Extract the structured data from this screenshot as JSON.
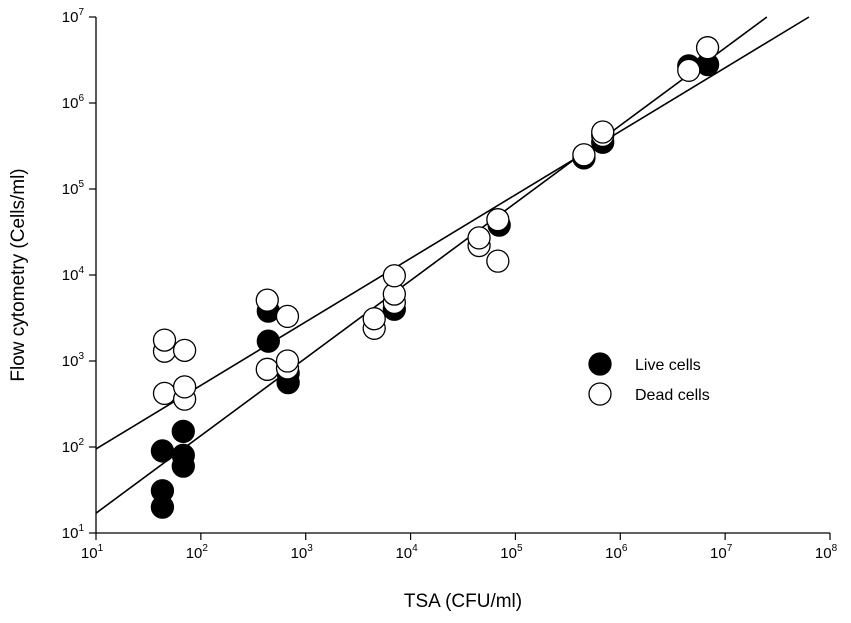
{
  "chart_data": {
    "type": "scatter",
    "title": "",
    "xlabel": "TSA (CFU/ml)",
    "ylabel": "Flow cytometry (Cells/ml)",
    "xscale": "log",
    "yscale": "log",
    "xlim": [
      10,
      100000000
    ],
    "ylim": [
      10,
      10000000
    ],
    "x_ticks": [
      {
        "base": "10",
        "exp": "1",
        "value": 10
      },
      {
        "base": "10",
        "exp": "2",
        "value": 100
      },
      {
        "base": "10",
        "exp": "3",
        "value": 1000
      },
      {
        "base": "10",
        "exp": "4",
        "value": 10000
      },
      {
        "base": "10",
        "exp": "5",
        "value": 100000
      },
      {
        "base": "10",
        "exp": "6",
        "value": 1000000
      },
      {
        "base": "10",
        "exp": "7",
        "value": 10000000
      },
      {
        "base": "10",
        "exp": "8",
        "value": 100000000
      }
    ],
    "y_ticks": [
      {
        "base": "10",
        "exp": "1",
        "value": 10
      },
      {
        "base": "10",
        "exp": "2",
        "value": 100
      },
      {
        "base": "10",
        "exp": "3",
        "value": 1000
      },
      {
        "base": "10",
        "exp": "4",
        "value": 10000
      },
      {
        "base": "10",
        "exp": "5",
        "value": 100000
      },
      {
        "base": "10",
        "exp": "6",
        "value": 1000000
      },
      {
        "base": "10",
        "exp": "7",
        "value": 10000000
      }
    ],
    "legend_position": "center-right",
    "series": [
      {
        "name": "Live cells",
        "marker": "filled-circle",
        "color": "#000000",
        "points": [
          {
            "x": 43,
            "y": 20
          },
          {
            "x": 43,
            "y": 31
          },
          {
            "x": 43,
            "y": 90
          },
          {
            "x": 68,
            "y": 60
          },
          {
            "x": 68,
            "y": 80
          },
          {
            "x": 68,
            "y": 152
          },
          {
            "x": 440,
            "y": 1700
          },
          {
            "x": 440,
            "y": 3800
          },
          {
            "x": 680,
            "y": 560
          },
          {
            "x": 680,
            "y": 720
          },
          {
            "x": 7000,
            "y": 4000
          },
          {
            "x": 70000,
            "y": 38000
          },
          {
            "x": 450000,
            "y": 230000
          },
          {
            "x": 680000,
            "y": 350000
          },
          {
            "x": 4500000,
            "y": 2700000
          },
          {
            "x": 6800000,
            "y": 2800000
          }
        ]
      },
      {
        "name": "Dead cells",
        "marker": "open-circle",
        "color": "#ffffff",
        "points": [
          {
            "x": 45,
            "y": 420
          },
          {
            "x": 45,
            "y": 1300
          },
          {
            "x": 45,
            "y": 1750
          },
          {
            "x": 70,
            "y": 360
          },
          {
            "x": 70,
            "y": 500
          },
          {
            "x": 70,
            "y": 1330
          },
          {
            "x": 430,
            "y": 800
          },
          {
            "x": 430,
            "y": 5100
          },
          {
            "x": 670,
            "y": 830
          },
          {
            "x": 670,
            "y": 1000
          },
          {
            "x": 670,
            "y": 3300
          },
          {
            "x": 4500,
            "y": 2400
          },
          {
            "x": 4500,
            "y": 3100
          },
          {
            "x": 7000,
            "y": 4800
          },
          {
            "x": 7000,
            "y": 6000
          },
          {
            "x": 7000,
            "y": 9800
          },
          {
            "x": 45000,
            "y": 22000
          },
          {
            "x": 45000,
            "y": 27000
          },
          {
            "x": 68000,
            "y": 14500
          },
          {
            "x": 68000,
            "y": 44000
          },
          {
            "x": 450000,
            "y": 250000
          },
          {
            "x": 680000,
            "y": 420000
          },
          {
            "x": 680000,
            "y": 460000
          },
          {
            "x": 4500000,
            "y": 2400000
          },
          {
            "x": 6800000,
            "y": 4400000
          }
        ]
      }
    ],
    "fit_lines": [
      {
        "name": "live-fit",
        "x_start": 10,
        "y_start": 17,
        "x_end": 25000000,
        "y_end": 10000000
      },
      {
        "name": "dead-fit",
        "x_start": 10,
        "y_start": 95,
        "x_end": 63000000,
        "y_end": 10000000
      }
    ]
  }
}
